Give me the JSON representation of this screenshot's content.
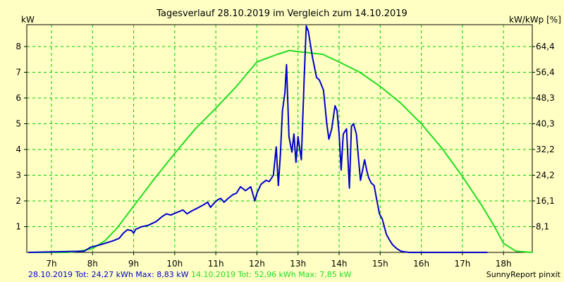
{
  "chart_data": {
    "type": "line",
    "title": "Tagesverlauf 28.10.2019 im Vergleich zum 14.10.2019",
    "ylabel_left": "kW",
    "ylabel_right": "kW/kWp [%]",
    "xlim": [
      6.4,
      18.7
    ],
    "ylim": [
      0,
      8.85
    ],
    "x_ticks": [
      7,
      8,
      9,
      10,
      11,
      12,
      13,
      14,
      15,
      16,
      17,
      18
    ],
    "x_tick_labels": [
      "7h",
      "8h",
      "9h",
      "10h",
      "11h",
      "12h",
      "13h",
      "14h",
      "15h",
      "16h",
      "17h",
      "18h"
    ],
    "y_ticks_left": [
      1,
      2,
      3,
      4,
      5,
      6,
      7,
      8
    ],
    "y_ticks_right": [
      {
        "value": 1.0,
        "label": "8,1"
      },
      {
        "value": 2.0,
        "label": "16,1"
      },
      {
        "value": 3.0,
        "label": "24,2"
      },
      {
        "value": 4.0,
        "label": "32,2"
      },
      {
        "value": 5.0,
        "label": "40,3"
      },
      {
        "value": 6.0,
        "label": "48,3"
      },
      {
        "value": 7.0,
        "label": "56,4"
      },
      {
        "value": 8.0,
        "label": "64,4"
      }
    ],
    "grid": true,
    "colors": {
      "background": "#ffffc4",
      "grid": "#00cc00",
      "series_1": "#0000cc",
      "series_2": "#22dd22"
    },
    "series": [
      {
        "name": "28.10.2019",
        "color": "#0000cc",
        "x": [
          6.45,
          7.8,
          7.95,
          8.15,
          8.3,
          8.5,
          8.65,
          8.75,
          8.85,
          8.95,
          9.0,
          9.05,
          9.2,
          9.35,
          9.55,
          9.7,
          9.8,
          9.9,
          10.05,
          10.2,
          10.3,
          10.4,
          10.55,
          10.7,
          10.8,
          10.87,
          10.95,
          11.05,
          11.12,
          11.2,
          11.3,
          11.42,
          11.5,
          11.6,
          11.72,
          11.85,
          11.95,
          12.0,
          12.1,
          12.22,
          12.3,
          12.4,
          12.47,
          12.52,
          12.57,
          12.62,
          12.68,
          12.72,
          12.78,
          12.85,
          12.9,
          12.95,
          13.0,
          13.08,
          13.15,
          13.2,
          13.25,
          13.35,
          13.45,
          13.52,
          13.57,
          13.62,
          13.7,
          13.75,
          13.82,
          13.9,
          13.95,
          14.0,
          14.05,
          14.1,
          14.18,
          14.25,
          14.3,
          14.35,
          14.42,
          14.48,
          14.52,
          14.57,
          14.62,
          14.67,
          14.72,
          14.78,
          14.85,
          14.92,
          14.98,
          15.05,
          15.15,
          15.22,
          15.3,
          15.4,
          15.5,
          15.6,
          15.7,
          15.8,
          15.85,
          15.95,
          16.1,
          16.3,
          16.55,
          16.8,
          17.0,
          17.2,
          17.6
        ],
        "y": [
          0,
          0.05,
          0.2,
          0.28,
          0.35,
          0.45,
          0.55,
          0.75,
          0.88,
          0.85,
          0.75,
          0.9,
          1.0,
          1.05,
          1.2,
          1.4,
          1.5,
          1.45,
          1.55,
          1.65,
          1.5,
          1.6,
          1.72,
          1.85,
          1.95,
          1.75,
          1.9,
          2.05,
          2.1,
          1.95,
          2.1,
          2.25,
          2.3,
          2.55,
          2.4,
          2.55,
          2.0,
          2.3,
          2.65,
          2.8,
          2.75,
          3.0,
          4.1,
          2.6,
          3.8,
          5.5,
          6.2,
          7.3,
          4.5,
          3.9,
          4.6,
          3.5,
          4.5,
          3.6,
          6.8,
          8.8,
          8.6,
          7.6,
          6.8,
          6.7,
          6.5,
          6.3,
          5.0,
          4.4,
          4.8,
          5.7,
          5.5,
          4.6,
          3.2,
          4.6,
          4.8,
          2.5,
          4.9,
          5.0,
          4.6,
          3.5,
          2.8,
          3.2,
          3.6,
          3.2,
          2.9,
          2.7,
          2.6,
          2.0,
          1.5,
          1.3,
          0.7,
          0.5,
          0.3,
          0.15,
          0.05,
          0.02,
          0,
          0,
          0,
          0,
          0,
          0,
          0,
          0,
          0,
          0,
          0
        ],
        "tot_label": "Tot: 24,27 kWh",
        "max_label": "Max: 8,83 kW"
      },
      {
        "name": "14.10.2019",
        "color": "#22dd22",
        "x": [
          6.45,
          7.4,
          7.7,
          8.0,
          8.3,
          8.6,
          9.0,
          9.5,
          10.0,
          10.5,
          11.0,
          11.5,
          12.0,
          12.5,
          12.8,
          13.0,
          13.3,
          13.6,
          14.0,
          14.5,
          15.0,
          15.5,
          16.0,
          16.5,
          17.0,
          17.5,
          17.8,
          18.0,
          18.3,
          18.7
        ],
        "y": [
          0,
          0,
          0.05,
          0.15,
          0.45,
          0.95,
          1.8,
          2.85,
          3.85,
          4.8,
          5.6,
          6.45,
          7.4,
          7.7,
          7.85,
          7.8,
          7.75,
          7.7,
          7.4,
          7.0,
          6.45,
          5.8,
          5.0,
          4.05,
          2.95,
          1.75,
          0.95,
          0.35,
          0.05,
          0
        ],
        "tot_label": "Tot: 52,96 kWh",
        "max_label": "Max: 7,85 kW"
      }
    ]
  },
  "footer": {
    "brand": "SunnyReport pinxit"
  }
}
